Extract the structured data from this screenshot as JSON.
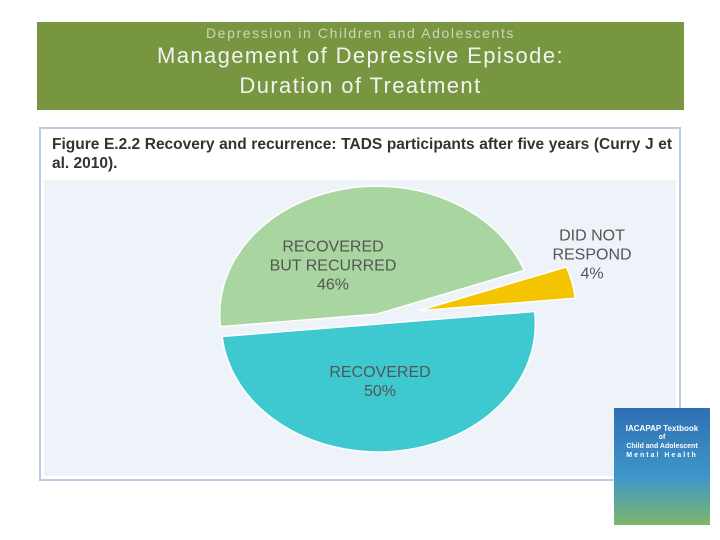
{
  "header": {
    "subtitle": "Depression in Children and Adolescents",
    "title_lines": [
      "Management of  Depressive Episode:",
      "Duration of Treatment"
    ]
  },
  "chart_data": {
    "type": "pie",
    "title": "Figure E.2.2 Recovery and recurrence: TADS participants after five years (Curry J et al. 2010).",
    "categories": [
      "RECOVERED BUT RECURRED",
      "DID NOT RESPOND",
      "RECOVERED"
    ],
    "values": [
      46,
      4,
      50
    ],
    "value_labels": [
      "46%",
      "4%",
      "50%"
    ],
    "colors": [
      "#a9d6a0",
      "#f5c400",
      "#3ec9d1"
    ]
  },
  "book": {
    "lines": [
      "IACAPAP Textbook",
      "of",
      "Child and Adolescent",
      "Mental Health"
    ]
  }
}
